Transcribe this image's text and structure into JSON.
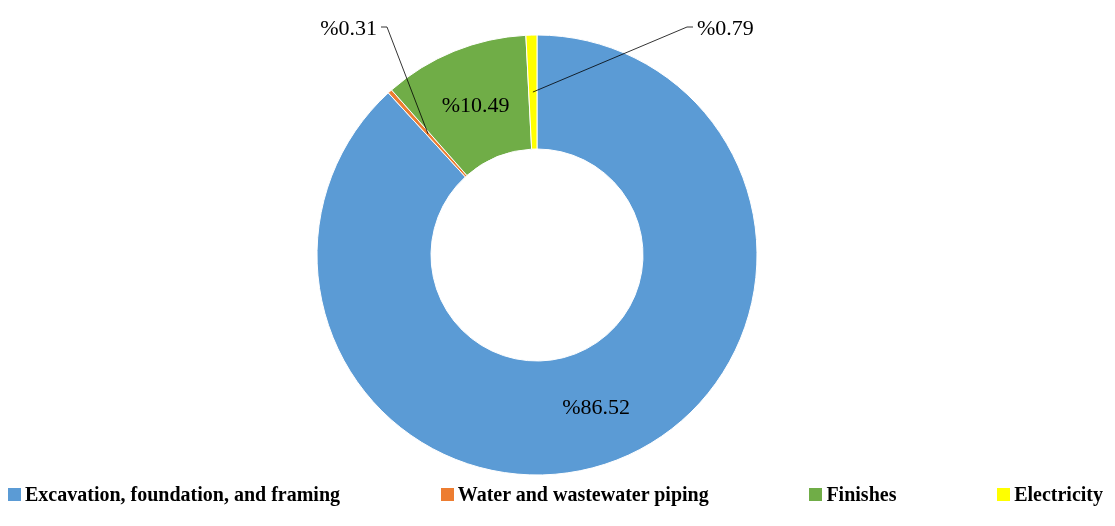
{
  "chart_data": {
    "type": "donut",
    "categories": [
      "Excavation, foundation, and framing",
      "Water and wastewater piping",
      "Finishes",
      "Electricity"
    ],
    "values": [
      86.52,
      0.31,
      10.49,
      0.79
    ],
    "value_labels": [
      "%86.52",
      "%0.31",
      "%10.49",
      "%0.79"
    ],
    "colors": [
      "#5b9bd5",
      "#ed7d31",
      "#70ad47",
      "#ffff00"
    ],
    "legend": "bottom"
  }
}
